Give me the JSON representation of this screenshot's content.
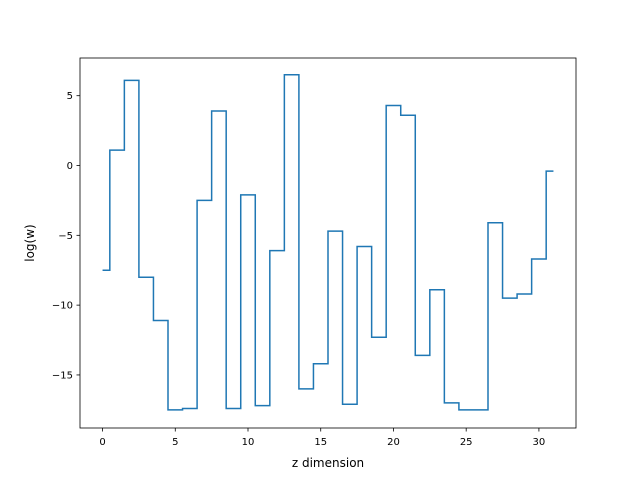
{
  "chart_data": {
    "type": "line",
    "drawstyle": "steps-mid",
    "title": "",
    "xlabel": "z dimension",
    "ylabel": "log(w)",
    "xlim": [
      -1.55,
      32.55
    ],
    "ylim": [
      -18.8,
      7.7
    ],
    "xticks": [
      0,
      5,
      10,
      15,
      20,
      25,
      30
    ],
    "xtick_labels": [
      "0",
      "5",
      "10",
      "15",
      "20",
      "25",
      "30"
    ],
    "yticks": [
      5,
      0,
      -5,
      -10,
      -15
    ],
    "ytick_labels": [
      "5",
      "0",
      "−5",
      "−10",
      "−15"
    ],
    "grid": false,
    "legend": false,
    "series": [
      {
        "color": "#1f77b4",
        "x": [
          0,
          1,
          2,
          3,
          4,
          5,
          6,
          7,
          8,
          9,
          10,
          11,
          12,
          13,
          14,
          15,
          16,
          17,
          18,
          19,
          20,
          21,
          22,
          23,
          24,
          25,
          26,
          27,
          28,
          29,
          30,
          31
        ],
        "y": [
          -7.5,
          1.1,
          6.1,
          -8.0,
          -11.1,
          -17.5,
          -17.4,
          -2.5,
          3.9,
          -17.4,
          -2.1,
          -17.2,
          -6.1,
          6.5,
          -16.0,
          -14.2,
          -4.7,
          -17.1,
          -5.8,
          -12.3,
          4.3,
          3.6,
          -13.6,
          -8.9,
          -17.0,
          -17.5,
          -17.5,
          -4.1,
          -9.5,
          -9.2,
          -6.7,
          -0.4
        ]
      }
    ]
  }
}
